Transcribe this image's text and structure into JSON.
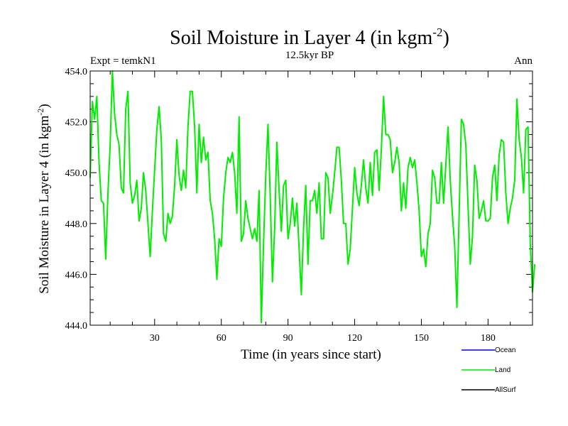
{
  "chart_data": {
    "type": "line",
    "title": "Soil Moisture in Layer 4 (in kgm",
    "title_sup": "-2",
    "title_end": ")",
    "subtitle": "12.5kyr BP",
    "left_label": "Expt = temkN1",
    "right_label": "Ann",
    "xlabel": "Time (in years since start)",
    "ylabel": "Soil Moisture in Layer 4 (in kgm",
    "ylabel_sup": "-2",
    "ylabel_end": ")",
    "xlim": [
      1,
      200
    ],
    "ylim": [
      444.0,
      454.0
    ],
    "x_ticks": [
      30,
      60,
      90,
      120,
      150,
      180
    ],
    "x_tick_labels": [
      "30",
      "60",
      "90",
      "120",
      "150",
      "180"
    ],
    "y_ticks": [
      444,
      446,
      448,
      450,
      452,
      454
    ],
    "y_tick_labels": [
      "444.0",
      "446.0",
      "448.0",
      "450.0",
      "452.0",
      "454.0"
    ],
    "legend": [
      {
        "name": "Ocean",
        "color": "#0000ff"
      },
      {
        "name": "Land",
        "color": "#00ee00"
      },
      {
        "name": "AllSurf",
        "color": "#000000"
      }
    ],
    "series": [
      {
        "name": "Land",
        "color": "#00ee00",
        "x_start": 1,
        "x_step": 1,
        "values": [
          449.8,
          452.8,
          452.1,
          453.0,
          450.4,
          448.9,
          448.8,
          446.6,
          449.2,
          451.1,
          454.0,
          452.3,
          451.5,
          451.1,
          449.4,
          449.2,
          452.5,
          453.2,
          449.6,
          448.8,
          449.1,
          449.7,
          448.1,
          448.6,
          450.0,
          449.3,
          448.0,
          446.7,
          448.5,
          450.1,
          451.7,
          452.6,
          451.3,
          447.6,
          447.3,
          448.4,
          448.0,
          448.3,
          449.5,
          451.3,
          449.9,
          449.3,
          450.1,
          449.4,
          451.8,
          453.2,
          453.2,
          451.8,
          449.2,
          451.9,
          450.4,
          451.4,
          450.5,
          450.8,
          448.9,
          448.4,
          447.4,
          445.8,
          447.4,
          447.1,
          449.0,
          450.0,
          450.6,
          450.4,
          450.8,
          450.0,
          448.4,
          452.2,
          447.3,
          447.6,
          448.9,
          448.2,
          447.8,
          447.4,
          447.8,
          447.3,
          449.3,
          444.1,
          447.2,
          449.9,
          451.9,
          449.1,
          445.7,
          447.8,
          451.2,
          449.3,
          447.7,
          449.5,
          449.7,
          447.4,
          448.0,
          449.0,
          447.9,
          448.8,
          447.0,
          445.2,
          447.8,
          449.5,
          446.4,
          448.9,
          448.9,
          449.3,
          448.4,
          449.6,
          447.4,
          447.4,
          450.0,
          449.8,
          448.4,
          449.1,
          450.0,
          451.0,
          451.0,
          449.7,
          448.0,
          448.0,
          446.4,
          447.0,
          448.6,
          450.2,
          449.2,
          448.7,
          449.5,
          450.5,
          449.4,
          448.8,
          450.4,
          449.1,
          450.8,
          450.9,
          449.3,
          450.9,
          453.0,
          451.5,
          451.5,
          451.3,
          450.0,
          450.4,
          451.0,
          450.4,
          448.5,
          449.6,
          448.6,
          450.2,
          450.6,
          450.2,
          450.5,
          449.6,
          448.5,
          446.7,
          447.0,
          446.3,
          447.6,
          448.0,
          450.1,
          449.8,
          448.8,
          448.8,
          450.4,
          448.8,
          450.3,
          451.8,
          449.7,
          448.3,
          447.1,
          444.7,
          448.4,
          452.1,
          451.9,
          451.1,
          448.7,
          446.4,
          447.5,
          450.3,
          449.7,
          448.2,
          448.5,
          448.9,
          448.1,
          448.1,
          448.2,
          449.8,
          450.3,
          448.9,
          450.7,
          451.3,
          451.2,
          449.2,
          448.0,
          448.6,
          449.0,
          449.7,
          452.9,
          451.3,
          450.6,
          449.2,
          451.7,
          451.8,
          447.2,
          445.3,
          446.4
        ]
      }
    ]
  }
}
